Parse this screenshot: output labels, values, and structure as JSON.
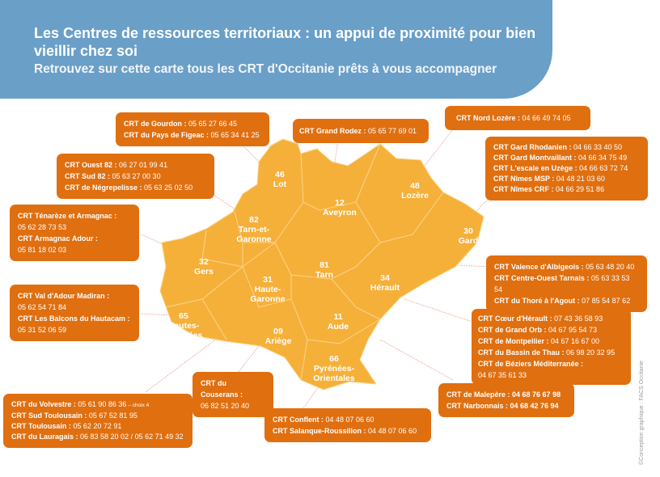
{
  "header": {
    "title": "Les Centres de ressources territoriaux : un appui de proximité pour bien vieillir chez soi",
    "subtitle": "Retrouvez sur cette carte tous les CRT d'Occitanie prêts à vous accompagner"
  },
  "colors": {
    "header": "#6a9fc8",
    "box": "#e06f10",
    "map": "#f5b03a"
  },
  "departments": [
    {
      "num": "46",
      "name": "Lot"
    },
    {
      "num": "12",
      "name": "Aveyron"
    },
    {
      "num": "48",
      "name": "Lozère"
    },
    {
      "num": "30",
      "name": "Gard"
    },
    {
      "num": "82",
      "name": "Tarn-et-Garonne"
    },
    {
      "num": "32",
      "name": "Gers"
    },
    {
      "num": "81",
      "name": "Tarn"
    },
    {
      "num": "34",
      "name": "Hérault"
    },
    {
      "num": "31",
      "name": "Haute-Garonne"
    },
    {
      "num": "65",
      "name": "Hautes-Pyrénées"
    },
    {
      "num": "09",
      "name": "Ariège"
    },
    {
      "num": "11",
      "name": "Aude"
    },
    {
      "num": "66",
      "name": "Pyrénées-Orientales"
    }
  ],
  "boxes": {
    "lot": [
      {
        "name": "CRT de Gourdon :",
        "phone": " 05 65 27 66 45"
      },
      {
        "name": "CRT du Pays de Figeac :",
        "phone": " 05 65 34 41 25"
      }
    ],
    "tg": [
      {
        "name": "CRT Ouest 82 :",
        "phone": " 06 27 01 99 41"
      },
      {
        "name": "CRT Sud 82 :",
        "phone": " 05 63 27 00 30"
      },
      {
        "name": "CRT de Négrepelisse :",
        "phone": " 05 63 25 02 50"
      }
    ],
    "gers": [
      {
        "name": "CRT Ténarèze et Armagnac :",
        "phone": "05 62 28 73 53"
      },
      {
        "name": "CRT Armagnac Adour :",
        "phone": "05 81 18 02 03"
      }
    ],
    "aveyron": [
      {
        "name": "CRT Grand Rodez :",
        "phone": " 05 65 77 69 01"
      }
    ],
    "lozere": [
      {
        "name": "CRT Nord Lozère :",
        "phone": " 04 66 49 74 05"
      }
    ],
    "gard": [
      {
        "name": "CRT Gard Rhodanien :",
        "phone": " 04 66 33 40 50"
      },
      {
        "name": "CRT Gard Montvaillant :",
        "phone": " 04 66 34 75 49"
      },
      {
        "name": "CRT L'escale en Uzège :",
        "phone": " 04 66 63 72 74"
      },
      {
        "name": "CRT Nîmes MSP :",
        "phone": " 04 48 21 03 60"
      },
      {
        "name": "CRT Nîmes CRF :",
        "phone": " 04 66 29 51 86"
      }
    ],
    "tarn": [
      {
        "name": "CRT Valence d'Albigeois :",
        "phone": " 05 63 48 20 40"
      },
      {
        "name": "CRT Centre-Ouest Tarnais :",
        "phone": " 05 63 33 53 54"
      },
      {
        "name": "CRT du Thoré à l'Agout :",
        "phone": " 07 85 54 87 62"
      }
    ],
    "herault": [
      {
        "name": "CRT Cœur d'Hérault :",
        "phone": " 07 43 36 58 93"
      },
      {
        "name": "CRT de Grand Orb :",
        "phone": " 04 67 95 54 73"
      },
      {
        "name": "CRT de Montpellier :",
        "phone": " 04 67 16 67 00"
      },
      {
        "name": "CRT du Bassin de Thau :",
        "phone": " 06 98 20 32 95"
      },
      {
        "name": "CRT de Béziers Méditerranée :",
        "phone": "04 67 35 61 33"
      }
    ],
    "hp": [
      {
        "name": "CRT Val d'Adour Madiran :",
        "phone": "05 62 54 71 84"
      },
      {
        "name": "CRT Les Balcons du Hautacam :",
        "phone": "05 31 52 06 59"
      }
    ],
    "ariege": [
      {
        "name": "CRT du Couserans :",
        "phone": "06 82 51 20 40"
      }
    ],
    "hg": [
      {
        "name": "CRT du Volvestre :",
        "phone": " 05 61 90 86 36",
        "note": " – choix 4"
      },
      {
        "name": "CRT Sud Toulousain :",
        "phone": " 05 67 52 81 95"
      },
      {
        "name": "CRT Toulousain :",
        "phone": " 05 62 20 72 91"
      },
      {
        "name": "CRT du Lauragais :",
        "phone": " 06 83 58 20 02 / 05 62 71 49 32"
      }
    ],
    "po": [
      {
        "name": "CRT Conflent :",
        "phone": " 04 48 07 06 60"
      },
      {
        "name": "CRT Salanque-Roussillon :",
        "phone": " 04 48 07 06 60"
      }
    ],
    "aude": [
      {
        "name": "CRT de Malepère : 04 68 76 67 98",
        "phone": ""
      },
      {
        "name": "CRT Narbonnais : 04 68 42 76 94",
        "phone": ""
      }
    ]
  },
  "credit": "©Conception graphique : FACS Occitanie"
}
